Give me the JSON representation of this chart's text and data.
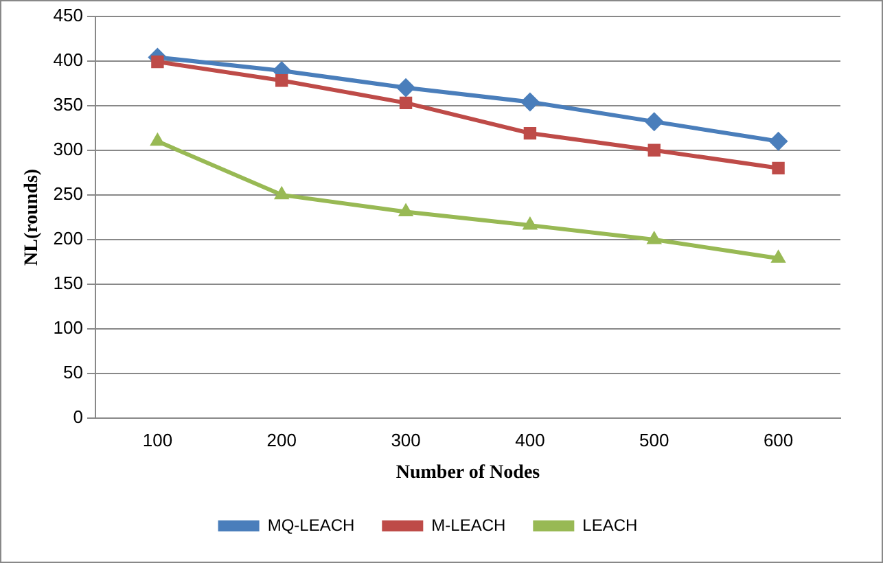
{
  "chart_data": {
    "type": "line",
    "xlabel": "Number of Nodes",
    "ylabel": "NL(rounds)",
    "categories": [
      "100",
      "200",
      "300",
      "400",
      "500",
      "600"
    ],
    "series": [
      {
        "name": "MQ-LEACH",
        "color": "#4a7ebb",
        "values": [
          404,
          389,
          370,
          354,
          332,
          310
        ],
        "marker": "diamond"
      },
      {
        "name": "M-LEACH",
        "color": "#be4b48",
        "values": [
          399,
          378,
          353,
          319,
          300,
          280
        ],
        "marker": "square"
      },
      {
        "name": "LEACH",
        "color": "#98b954",
        "values": [
          310,
          250,
          231,
          216,
          200,
          179
        ],
        "marker": "triangle"
      }
    ],
    "ylim": [
      0,
      450
    ],
    "yticks": [
      0,
      50,
      100,
      150,
      200,
      250,
      300,
      350,
      400,
      450
    ],
    "grid": "y",
    "legend": "bottom"
  }
}
